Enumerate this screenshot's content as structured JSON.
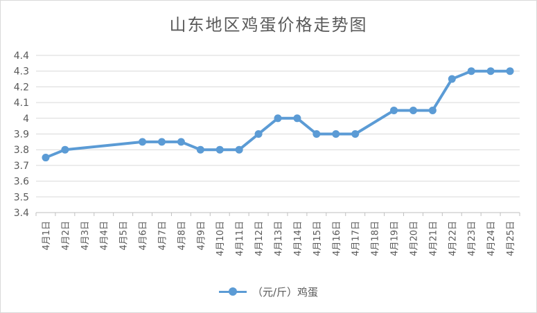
{
  "chart_data": {
    "type": "line",
    "title": "山东地区鸡蛋价格走势图",
    "categories": [
      "4月1日",
      "4月2日",
      "4月3日",
      "4月4日",
      "4月5日",
      "4月6日",
      "4月7日",
      "4月8日",
      "4月9日",
      "4月10日",
      "4月11日",
      "4月12日",
      "4月13日",
      "4月14日",
      "4月15日",
      "4月16日",
      "4月17日",
      "4月18日",
      "4月19日",
      "4月20日",
      "4月21日",
      "4月22日",
      "4月23日",
      "4月24日",
      "4月25日"
    ],
    "y_ticks": [
      "3.4",
      "3.5",
      "3.6",
      "3.7",
      "3.8",
      "3.9",
      "4",
      "4.1",
      "4.2",
      "4.3",
      "4.4"
    ],
    "ylim": [
      3.4,
      4.4
    ],
    "series": [
      {
        "name": "（元/斤）鸡蛋",
        "color": "#5b9bd5",
        "values": [
          3.75,
          3.8,
          null,
          null,
          null,
          3.85,
          3.85,
          3.85,
          3.8,
          3.8,
          3.8,
          3.9,
          4.0,
          4.0,
          3.9,
          3.9,
          3.9,
          null,
          4.05,
          4.05,
          4.05,
          4.25,
          4.3,
          4.3,
          4.3
        ]
      }
    ],
    "grid": true,
    "legend": "bottom"
  }
}
